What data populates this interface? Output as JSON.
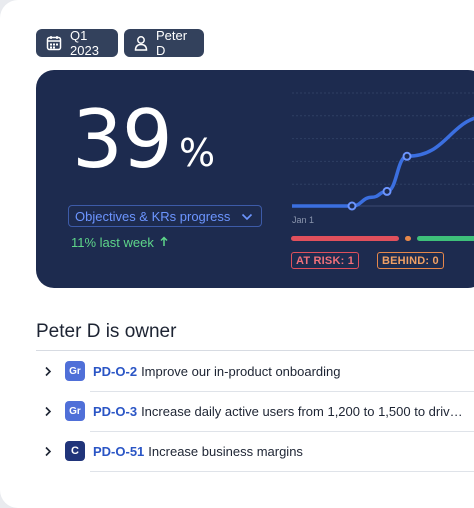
{
  "filters": {
    "quarter_label": "Q1 2023",
    "owner_label": "Peter D"
  },
  "summary": {
    "progress_value": "39",
    "progress_unit": "%",
    "metric_dropdown_label": "Objectives & KRs progress",
    "trend_text": "11% last week",
    "chart_x_label": "Jan 1",
    "at_risk_label": "AT RISK: 1",
    "behind_label": "BEHIND: 0"
  },
  "chart_data": {
    "type": "line",
    "x": [
      "Jan 1",
      "",
      "",
      "",
      "",
      "",
      ""
    ],
    "series": [
      {
        "values": [
          0,
          0,
          0,
          3,
          5,
          17,
          31
        ]
      }
    ]
  },
  "status_bar": {
    "segments": [
      {
        "status": "at-risk",
        "color": "#e0505c"
      },
      {
        "status": "behind",
        "color": "#e5874a"
      },
      {
        "status": "on-track",
        "color": "#3ec07a"
      }
    ]
  },
  "colors": {
    "accent": "#2a55c5",
    "hero_background": "#1d2b4f",
    "line": "#3b6fe0",
    "trend_positive": "#5ed68a"
  },
  "owner_section": {
    "title": "Peter D is owner",
    "items": [
      {
        "badge": "Gr",
        "key": "PD-O-2",
        "title": "Improve our in-product onboarding"
      },
      {
        "badge": "Gr",
        "key": "PD-O-3",
        "title": "Increase daily active users from 1,200 to 1,500 to drive..."
      },
      {
        "badge": "C",
        "key": "PD-O-51",
        "title": "Increase business margins"
      }
    ]
  },
  "icons": {
    "quarter_chip": "calendar-icon",
    "owner_chip": "user-icon",
    "dropdown": "chevron-down-icon",
    "trend": "arrow-up-icon",
    "row_expand": "chevron-right-icon"
  }
}
